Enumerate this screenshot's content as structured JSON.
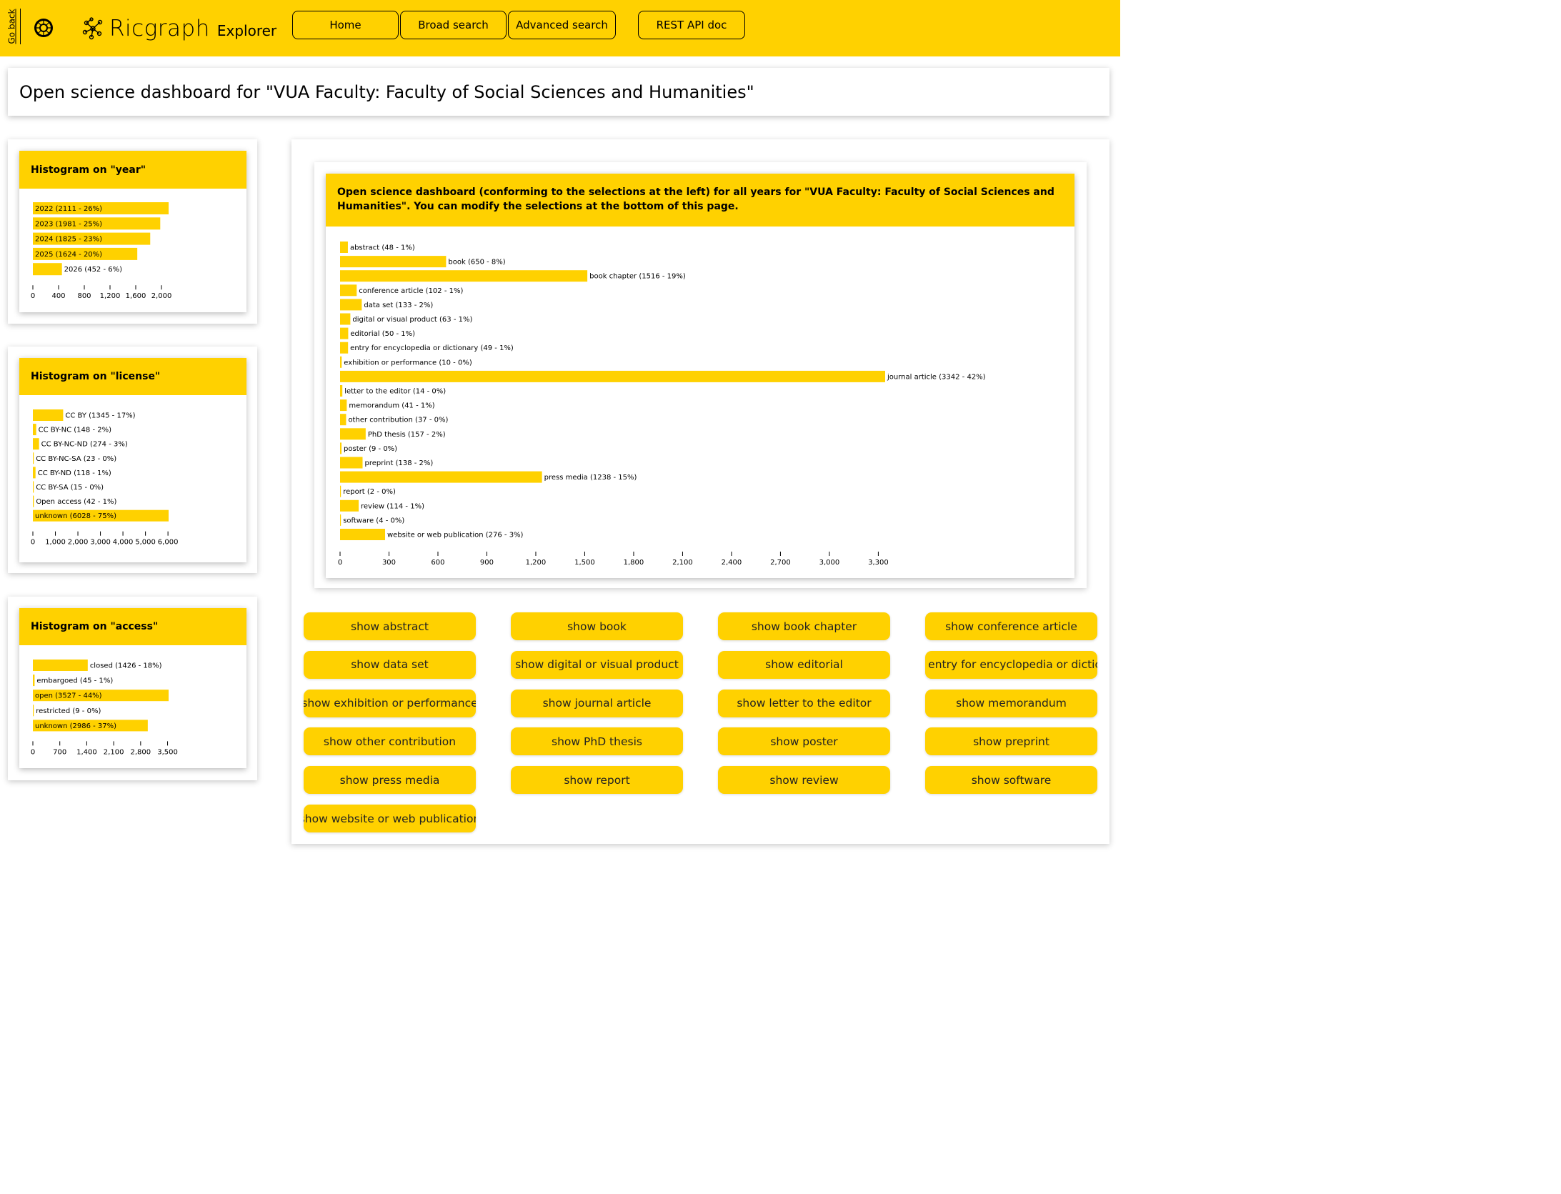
{
  "header": {
    "go_back": "Go back",
    "brand_name": "Ricgraph",
    "brand_sub": "Explorer",
    "nav": [
      "Home",
      "Broad search",
      "Advanced search",
      "REST API doc"
    ]
  },
  "page_title": "Open science dashboard for \"VUA Faculty: Faculty of Social Sciences and Humanities\"",
  "main_card_title": "Open science dashboard (conforming to the selections at the left) for all years for \"VUA Faculty: Faculty of Social Sciences and Humanities\". You can modify the selections at the bottom of this page.",
  "chart_data": [
    {
      "type": "bar",
      "title": "Histogram on \"year\"",
      "categories": [
        "2022 (2111 - 26%)",
        "2023 (1981 - 25%)",
        "2024 (1825 - 23%)",
        "2025 (1624 - 20%)",
        "2026 (452 - 6%)"
      ],
      "values": [
        2111,
        1981,
        1825,
        1624,
        452
      ],
      "xlim": [
        0,
        2111
      ],
      "ticks": [
        0,
        400,
        800,
        1200,
        1600,
        2000
      ],
      "tick_labels": [
        "0",
        "400",
        "800",
        "1,200",
        "1,600",
        "2,000"
      ]
    },
    {
      "type": "bar",
      "title": "Histogram on \"license\"",
      "categories": [
        "CC BY (1345 - 17%)",
        "CC BY-NC (148 - 2%)",
        "CC BY-NC-ND (274 - 3%)",
        "CC BY-NC-SA (23 - 0%)",
        "CC BY-ND (118 - 1%)",
        "CC BY-SA (15 - 0%)",
        "Open access (42 - 1%)",
        "unknown (6028 - 75%)"
      ],
      "values": [
        1345,
        148,
        274,
        23,
        118,
        15,
        42,
        6028
      ],
      "xlim": [
        0,
        6028
      ],
      "ticks": [
        0,
        1000,
        2000,
        3000,
        4000,
        5000,
        6000
      ],
      "tick_labels": [
        "0",
        "1,000",
        "2,000",
        "3,000",
        "4,000",
        "5,000",
        "6,000"
      ]
    },
    {
      "type": "bar",
      "title": "Histogram on \"access\"",
      "categories": [
        "closed (1426 - 18%)",
        "embargoed (45 - 1%)",
        "open (3527 - 44%)",
        "restricted (9 - 0%)",
        "unknown (2986 - 37%)"
      ],
      "values": [
        1426,
        45,
        3527,
        9,
        2986
      ],
      "xlim": [
        0,
        3527
      ],
      "ticks": [
        0,
        700,
        1400,
        2100,
        2800,
        3500
      ],
      "tick_labels": [
        "0",
        "700",
        "1,400",
        "2,100",
        "2,800",
        "3,500"
      ]
    },
    {
      "type": "bar",
      "title": "",
      "categories": [
        "abstract (48 - 1%)",
        "book (650 - 8%)",
        "book chapter (1516 - 19%)",
        "conference article (102 - 1%)",
        "data set (133 - 2%)",
        "digital or visual product (63 - 1%)",
        "editorial (50 - 1%)",
        "entry for encyclopedia or dictionary (49 - 1%)",
        "exhibition or performance (10 - 0%)",
        "journal article (3342 - 42%)",
        "letter to the editor (14 - 0%)",
        "memorandum (41 - 1%)",
        "other contribution (37 - 0%)",
        "PhD thesis (157 - 2%)",
        "poster (9 - 0%)",
        "preprint (138 - 2%)",
        "press media (1238 - 15%)",
        "report (2 - 0%)",
        "review (114 - 1%)",
        "software (4 - 0%)",
        "website or web publication (276 - 3%)"
      ],
      "values": [
        48,
        650,
        1516,
        102,
        133,
        63,
        50,
        49,
        10,
        3342,
        14,
        41,
        37,
        157,
        9,
        138,
        1238,
        2,
        114,
        4,
        276
      ],
      "xlim": [
        0,
        3342
      ],
      "ticks": [
        0,
        300,
        600,
        900,
        1200,
        1500,
        1800,
        2100,
        2400,
        2700,
        3000,
        3300
      ],
      "tick_labels": [
        "0",
        "300",
        "600",
        "900",
        "1,200",
        "1,500",
        "1,800",
        "2,100",
        "2,400",
        "2,700",
        "3,000",
        "3,300"
      ]
    }
  ],
  "show_buttons": [
    "show abstract",
    "show book",
    "show book chapter",
    "show conference article",
    "show data set",
    "show digital or visual product",
    "show editorial",
    "show entry for encyclopedia or dictionary",
    "show exhibition or performance",
    "show journal article",
    "show letter to the editor",
    "show memorandum",
    "show other contribution",
    "show PhD thesis",
    "show poster",
    "show preprint",
    "show press media",
    "show report",
    "show review",
    "show software",
    "show website or web publication"
  ],
  "colors": {
    "accent": "#ffd100",
    "bar": "#ffd100"
  }
}
